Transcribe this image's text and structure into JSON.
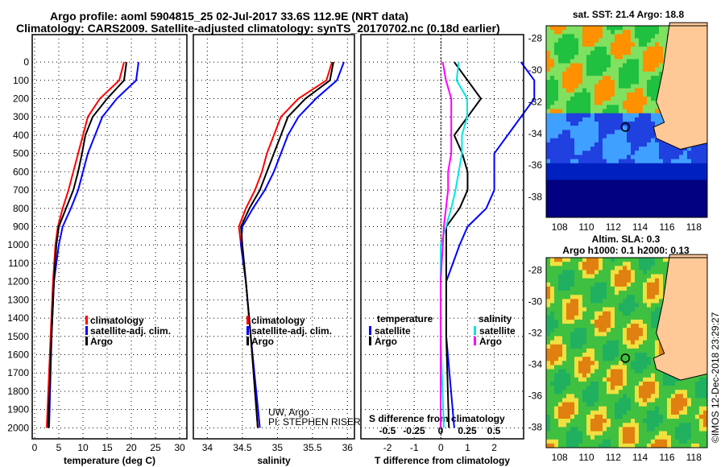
{
  "title1": "Argo profile: aoml 5904815_25 02-Jul-2017 33.6S 112.9E (NRT data)",
  "title2": "Climatology: CARS2009. Satellite-adjusted climatology: synTS_20170702.nc (0.18d earlier)",
  "colors": {
    "argo": "#000000",
    "clim": "#ff0000",
    "sat": "#0000ff",
    "s_sat": "#00e5e5",
    "s_argo": "#ff00ff",
    "land": "#ffc896"
  },
  "chart_data": [
    {
      "type": "line",
      "xlabel": "temperature (deg C)",
      "xticks": [
        0,
        5,
        10,
        15,
        20,
        25,
        30
      ],
      "xlim": [
        -0.5,
        31.5
      ],
      "yticks": [
        0,
        100,
        200,
        300,
        400,
        500,
        600,
        700,
        800,
        900,
        1000,
        1100,
        1200,
        1300,
        1400,
        1500,
        1600,
        1700,
        1800,
        1900,
        2000
      ],
      "ylim": [
        -150,
        2060
      ],
      "depth": [
        0,
        100,
        200,
        300,
        400,
        500,
        600,
        700,
        800,
        900,
        1000,
        1200,
        1500,
        2000
      ],
      "series": [
        {
          "name": "climatology",
          "key": "clim",
          "values": [
            18.5,
            17.5,
            13.5,
            11,
            10,
            9,
            8,
            7,
            5.8,
            4.8,
            4.3,
            3.8,
            3.3,
            2.5
          ]
        },
        {
          "name": "satellite-adj. clim.",
          "key": "sat",
          "values": [
            21.5,
            21,
            17,
            14,
            12.5,
            11,
            10,
            9,
            7.5,
            5.8,
            5,
            4,
            3.5,
            3
          ]
        },
        {
          "name": "Argo",
          "key": "argo",
          "values": [
            19,
            18.5,
            15,
            12,
            10.5,
            9.8,
            9,
            8,
            6.5,
            5,
            4.5,
            4,
            3.5,
            2.8
          ]
        }
      ]
    },
    {
      "type": "line",
      "xlabel": "salinity",
      "xticks": [
        34,
        34.5,
        35,
        35.5,
        36
      ],
      "xlim": [
        33.8,
        36.1
      ],
      "series": [
        {
          "name": "climatology",
          "key": "clim",
          "values": [
            35.78,
            35.7,
            35.3,
            35.05,
            34.95,
            34.85,
            34.78,
            34.68,
            34.55,
            34.45,
            34.48,
            34.55,
            34.62,
            34.72
          ]
        },
        {
          "name": "satellite-adj. clim.",
          "key": "sat",
          "values": [
            35.95,
            35.85,
            35.55,
            35.3,
            35.15,
            35.05,
            34.95,
            34.82,
            34.65,
            34.5,
            34.48,
            34.55,
            34.62,
            34.75
          ]
        },
        {
          "name": "Argo",
          "key": "argo",
          "values": [
            35.8,
            35.75,
            35.4,
            35.15,
            35.05,
            34.95,
            34.85,
            34.75,
            34.6,
            34.48,
            34.5,
            34.55,
            34.62,
            34.72
          ]
        }
      ],
      "annotation": [
        "UW, Argo",
        "PI: STEPHEN RISER"
      ]
    },
    {
      "type": "line",
      "xlabel": "T difference from climatology",
      "xticks": [
        -2,
        -1,
        0,
        1,
        2
      ],
      "xlim": [
        -3,
        3.1
      ],
      "x2label": "S difference from climatology",
      "x2ticks": [
        -0.5,
        -0.25,
        0,
        0.25,
        0.5
      ],
      "legend": {
        "temperature": "temperature",
        "salinity": "salinity",
        "satellite": "satellite",
        "argo": "Argo"
      }
    }
  ],
  "maps": {
    "sst_title": "sat. SST: 21.4 Argo: 18.8",
    "sla_title1": "Altim. SLA: 0.3",
    "sla_title2": "Argo h1000: 0.1 h2000: 0.13",
    "lon_ticks": [
      "108",
      "110",
      "112",
      "114",
      "116",
      "118"
    ],
    "lat_ticks": [
      "-28",
      "-30",
      "-32",
      "-34",
      "-36",
      "-38"
    ],
    "float_lon": 112.9,
    "float_lat": -33.6
  },
  "credit": "©IMOS 12-Dec-2018 23:29:27"
}
